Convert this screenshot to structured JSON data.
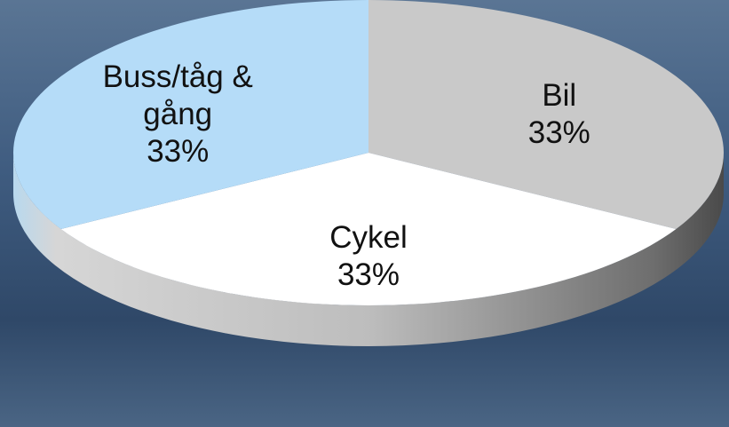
{
  "chart_data": {
    "type": "pie",
    "categories": [
      "Bil",
      "Cykel",
      "Buss/tåg & gång"
    ],
    "values": [
      33,
      33,
      33
    ],
    "value_labels": [
      "33%",
      "33%",
      "33%"
    ],
    "colors": [
      "#c9c9c9",
      "#ffffff",
      "#b5dcf8"
    ]
  }
}
